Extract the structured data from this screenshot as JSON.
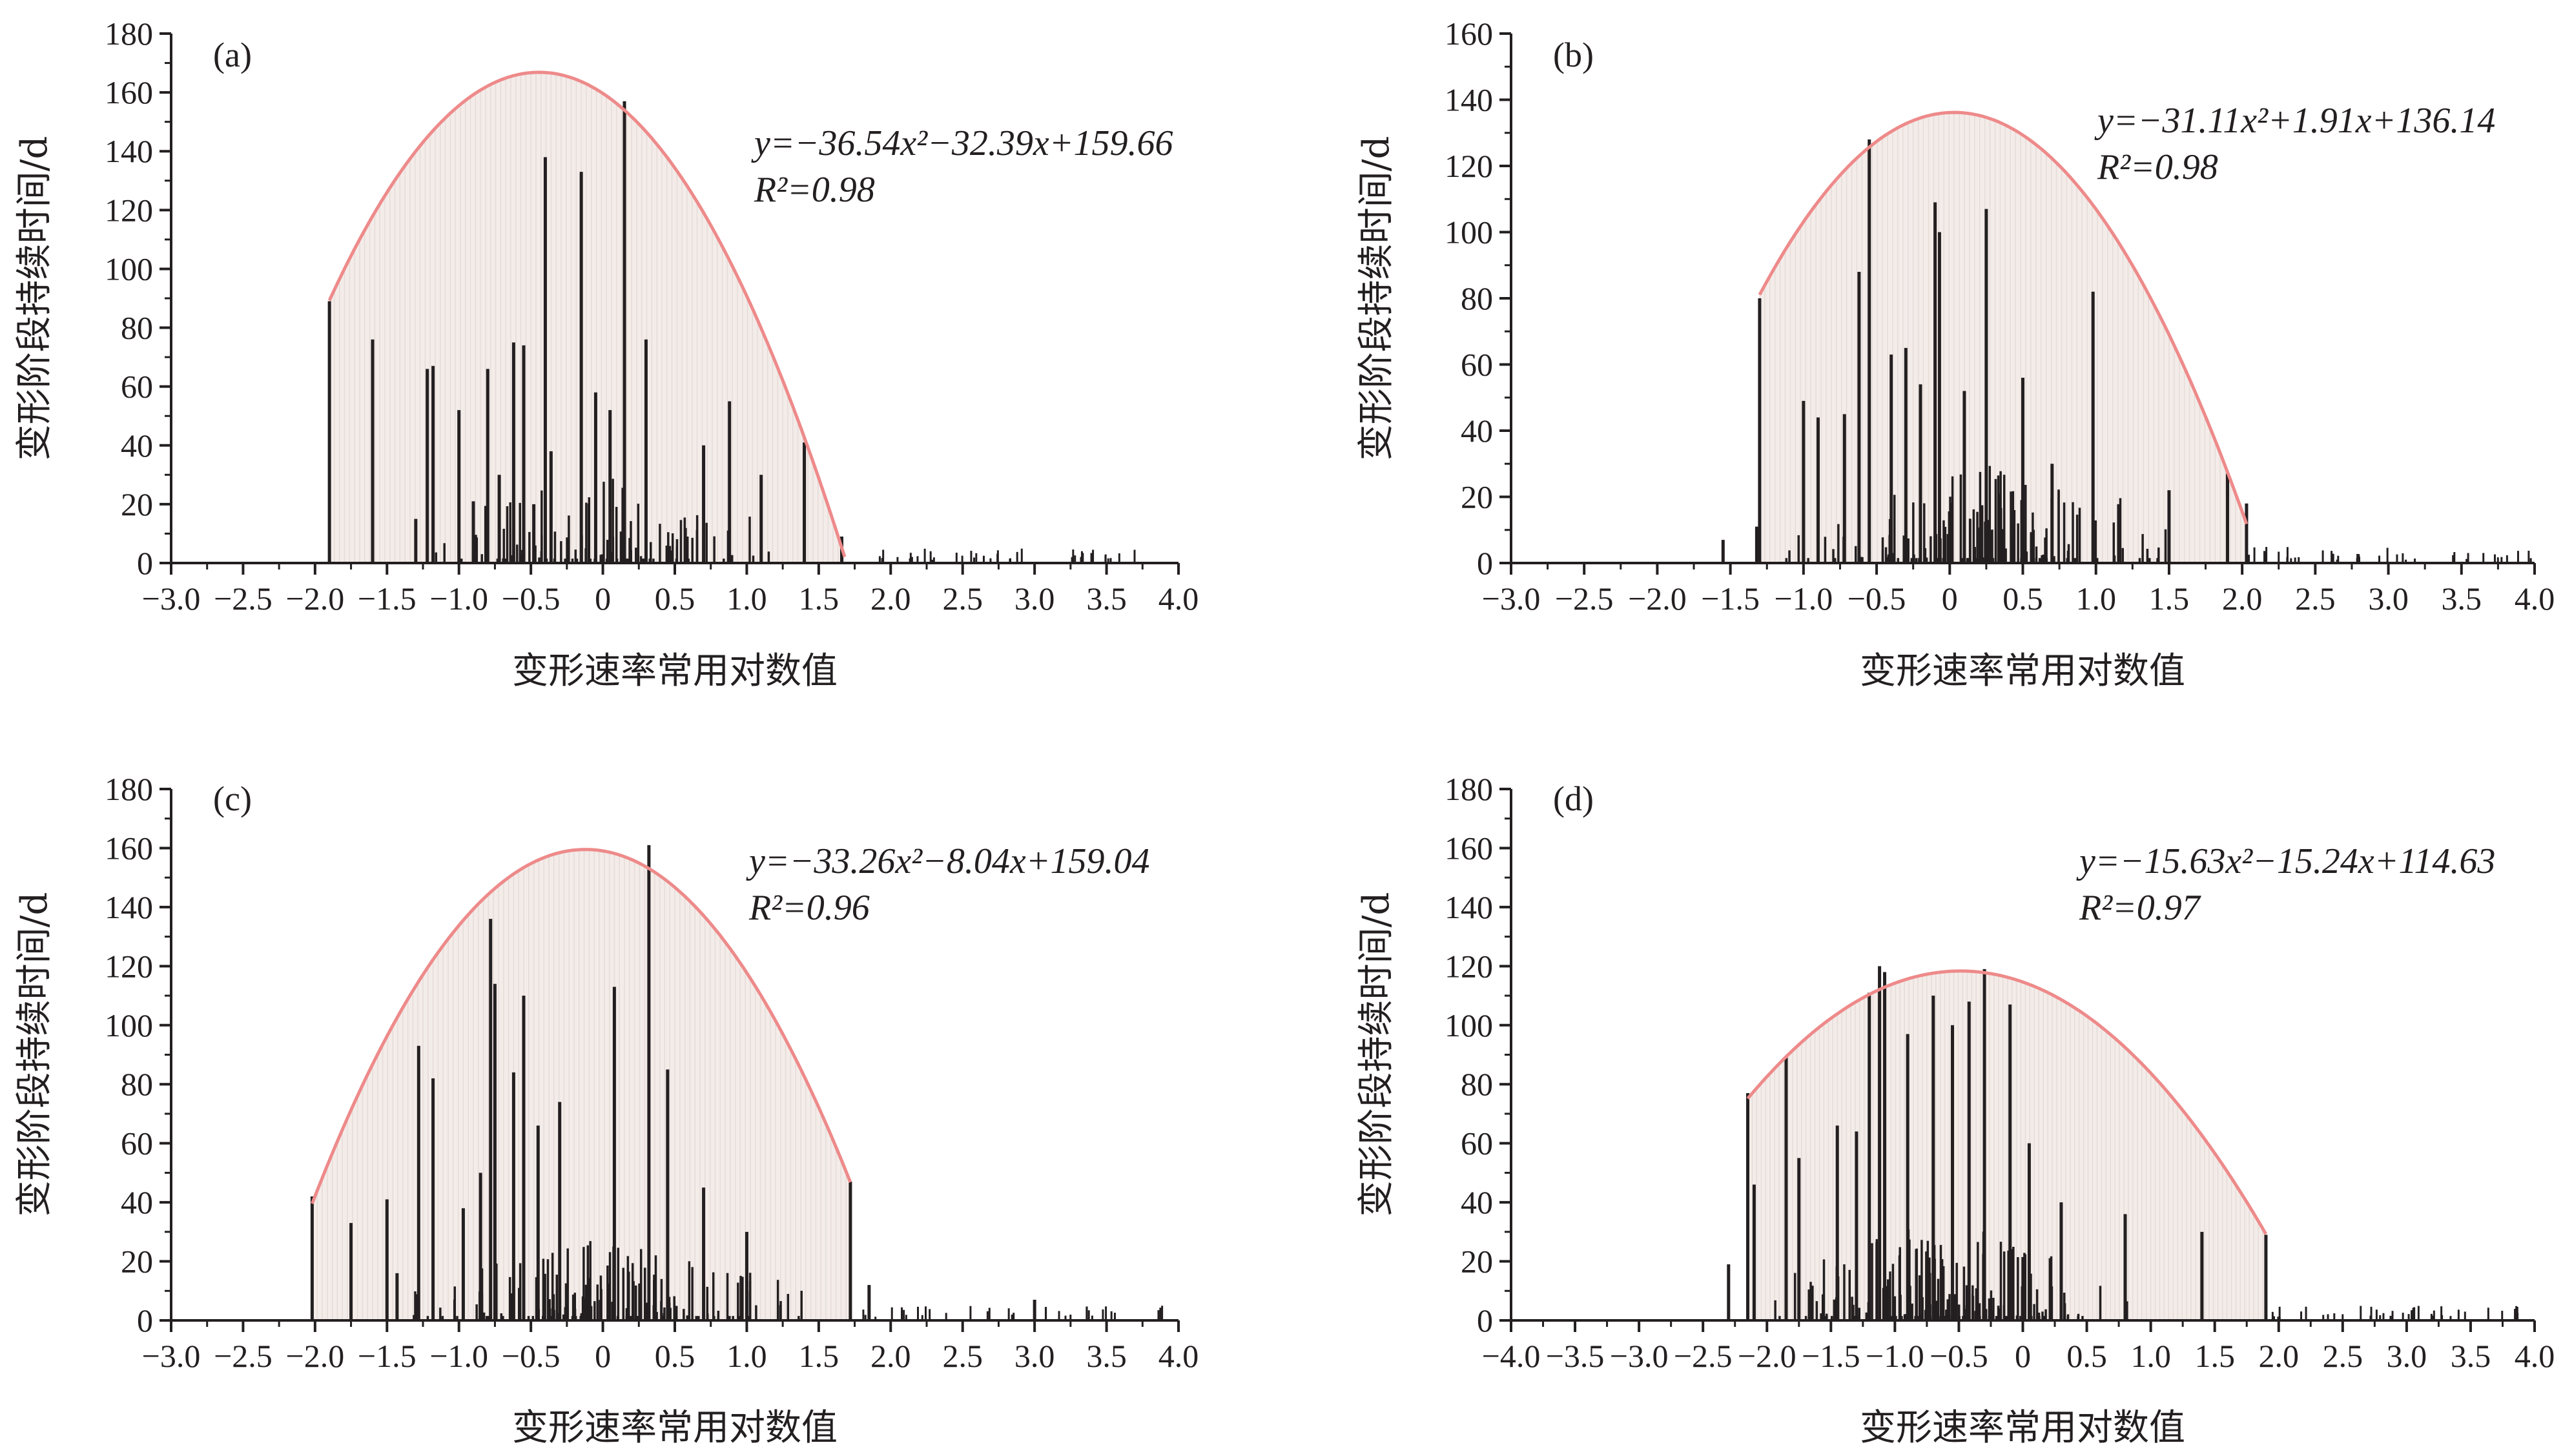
{
  "colors": {
    "bars": "#231f20",
    "axis": "#231f20",
    "fit_curve": "#ee8a8a",
    "fill": "#f3ece9"
  },
  "chart_data": [
    {
      "type": "bar",
      "panel_label": "(a)",
      "xlabel": "变形速率常用对数值",
      "ylabel": "变形阶段持续时间/d",
      "xlim": [
        -3.0,
        4.0
      ],
      "ylim": [
        0,
        180
      ],
      "xticks": [
        "−3.0",
        "−2.5",
        "−2.0",
        "−1.5",
        "−1.0",
        "−0.5",
        "0",
        "0.5",
        "1.0",
        "1.5",
        "2.0",
        "2.5",
        "3.0",
        "3.5",
        "4.0"
      ],
      "yticks": [
        "0",
        "20",
        "40",
        "60",
        "80",
        "100",
        "120",
        "140",
        "160",
        "180"
      ],
      "equation": "y=−36.54x²−32.39x+159.66",
      "r2": "R²=0.98",
      "fit": {
        "a": -36.54,
        "b": -32.39,
        "c": 159.66,
        "x_range": [
          -1.9,
          1.68
        ]
      },
      "peaks": [
        [
          -1.9,
          89
        ],
        [
          -1.6,
          76
        ],
        [
          -1.3,
          15
        ],
        [
          -1.22,
          66
        ],
        [
          -1.18,
          67
        ],
        [
          -1.0,
          52
        ],
        [
          -0.9,
          21
        ],
        [
          -0.8,
          66
        ],
        [
          -0.72,
          30
        ],
        [
          -0.62,
          75
        ],
        [
          -0.55,
          74
        ],
        [
          -0.48,
          20
        ],
        [
          -0.4,
          138
        ],
        [
          -0.36,
          38
        ],
        [
          -0.15,
          133
        ],
        [
          -0.05,
          58
        ],
        [
          0.05,
          52
        ],
        [
          0.15,
          157
        ],
        [
          0.3,
          76
        ],
        [
          0.7,
          40
        ],
        [
          0.88,
          55
        ],
        [
          1.1,
          30
        ],
        [
          1.4,
          41
        ],
        [
          1.66,
          9
        ]
      ],
      "density": {
        "center": 0.0,
        "spread": 0.9,
        "count": 110,
        "max": 30,
        "tail_to": 2.5
      }
    },
    {
      "type": "bar",
      "panel_label": "(b)",
      "xlabel": "变形速率常用对数值",
      "ylabel": "变形阶段持续时间/d",
      "xlim": [
        -3.0,
        4.0
      ],
      "ylim": [
        0,
        160
      ],
      "xticks": [
        "−3.0",
        "−2.5",
        "−2.0",
        "−1.5",
        "−1.0",
        "−0.5",
        "0",
        "0.5",
        "1.0",
        "1.5",
        "2.0",
        "2.5",
        "3.0",
        "3.5",
        "4.0"
      ],
      "yticks": [
        "0",
        "20",
        "40",
        "60",
        "80",
        "100",
        "120",
        "140",
        "160"
      ],
      "equation": "y=−31.11x²+1.91x+136.14",
      "r2": "R²=0.98",
      "fit": {
        "a": -31.11,
        "b": 1.91,
        "c": 136.14,
        "x_range": [
          -1.3,
          2.03
        ]
      },
      "peaks": [
        [
          -1.55,
          7
        ],
        [
          -1.32,
          11
        ],
        [
          -1.3,
          80
        ],
        [
          -1.0,
          49
        ],
        [
          -0.9,
          44
        ],
        [
          -0.72,
          45
        ],
        [
          -0.62,
          88
        ],
        [
          -0.55,
          128
        ],
        [
          -0.4,
          63
        ],
        [
          -0.3,
          65
        ],
        [
          -0.2,
          54
        ],
        [
          -0.1,
          109
        ],
        [
          -0.07,
          100
        ],
        [
          0.1,
          52
        ],
        [
          0.25,
          107
        ],
        [
          0.5,
          56
        ],
        [
          0.7,
          30
        ],
        [
          0.98,
          82
        ],
        [
          1.5,
          22
        ],
        [
          1.9,
          27
        ],
        [
          2.03,
          18
        ]
      ],
      "density": {
        "center": 0.3,
        "spread": 0.9,
        "count": 150,
        "max": 30,
        "tail_to": 3.0
      }
    },
    {
      "type": "bar",
      "panel_label": "(c)",
      "xlabel": "变形速率常用对数值",
      "ylabel": "变形阶段持续时间/d",
      "xlim": [
        -3.0,
        4.0
      ],
      "ylim": [
        0,
        180
      ],
      "xticks": [
        "−3.0",
        "−2.5",
        "−2.0",
        "−1.5",
        "−1.0",
        "−0.5",
        "0",
        "0.5",
        "1.0",
        "1.5",
        "2.0",
        "2.5",
        "3.0",
        "3.5",
        "4.0"
      ],
      "yticks": [
        "0",
        "20",
        "40",
        "60",
        "80",
        "100",
        "120",
        "140",
        "160",
        "180"
      ],
      "equation": "y=−33.26x²−8.04x+159.04",
      "r2": "R²=0.96",
      "fit": {
        "a": -33.26,
        "b": -8.04,
        "c": 159.04,
        "x_range": [
          -2.02,
          1.72
        ]
      },
      "peaks": [
        [
          -2.02,
          42
        ],
        [
          -1.75,
          33
        ],
        [
          -1.5,
          41
        ],
        [
          -1.43,
          16
        ],
        [
          -1.28,
          93
        ],
        [
          -1.18,
          82
        ],
        [
          -0.97,
          38
        ],
        [
          -0.85,
          50
        ],
        [
          -0.78,
          136
        ],
        [
          -0.75,
          114
        ],
        [
          -0.62,
          84
        ],
        [
          -0.55,
          110
        ],
        [
          -0.45,
          66
        ],
        [
          -0.3,
          74
        ],
        [
          0.08,
          113
        ],
        [
          0.32,
          161
        ],
        [
          0.45,
          85
        ],
        [
          0.7,
          45
        ],
        [
          1.0,
          30
        ],
        [
          1.72,
          47
        ],
        [
          1.85,
          12
        ],
        [
          3.0,
          7
        ]
      ],
      "density": {
        "center": 0.0,
        "spread": 0.95,
        "count": 160,
        "max": 30,
        "tail_to": 3.2
      }
    },
    {
      "type": "bar",
      "panel_label": "(d)",
      "xlabel": "变形速率常用对数值",
      "ylabel": "变形阶段持续时间/d",
      "xlim": [
        -4.0,
        4.0
      ],
      "ylim": [
        0,
        180
      ],
      "xticks": [
        "−4.0",
        "−3.5",
        "−3.0",
        "−2.5",
        "−2.0",
        "−1.5",
        "−1.0",
        "−0.5",
        "0",
        "0.5",
        "1.0",
        "1.5",
        "2.0",
        "2.5",
        "3.0",
        "3.5",
        "4.0"
      ],
      "yticks": [
        "0",
        "20",
        "40",
        "60",
        "80",
        "100",
        "120",
        "140",
        "160",
        "180"
      ],
      "equation": "y=−15.63x²−15.24x+114.63",
      "r2": "R²=0.97",
      "fit": {
        "a": -15.63,
        "b": -15.24,
        "c": 114.63,
        "x_range": [
          -2.15,
          1.9
        ]
      },
      "peaks": [
        [
          -2.3,
          19
        ],
        [
          -2.15,
          77
        ],
        [
          -2.1,
          46
        ],
        [
          -1.85,
          89
        ],
        [
          -1.75,
          55
        ],
        [
          -1.45,
          66
        ],
        [
          -1.3,
          64
        ],
        [
          -1.2,
          111
        ],
        [
          -1.12,
          120
        ],
        [
          -1.08,
          118
        ],
        [
          -0.9,
          97
        ],
        [
          -0.7,
          110
        ],
        [
          -0.55,
          100
        ],
        [
          -0.42,
          108
        ],
        [
          -0.3,
          119
        ],
        [
          -0.1,
          107
        ],
        [
          0.05,
          60
        ],
        [
          0.3,
          40
        ],
        [
          0.8,
          36
        ],
        [
          1.4,
          30
        ],
        [
          1.9,
          29
        ]
      ],
      "density": {
        "center": -0.6,
        "spread": 0.95,
        "count": 200,
        "max": 35,
        "tail_to": 2.7
      }
    }
  ]
}
